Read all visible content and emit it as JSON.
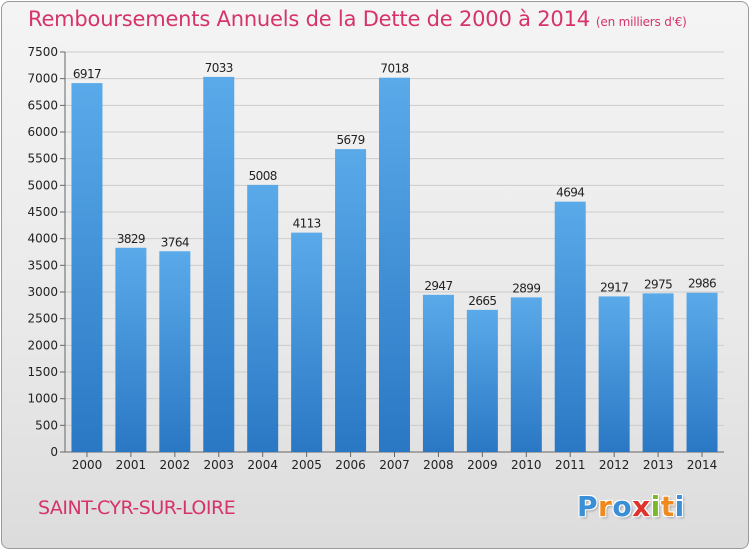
{
  "chart_data": {
    "type": "bar",
    "title": "Remboursements Annuels de la Dette de 2000 à 2014",
    "unit_note": "(en milliers d'€)",
    "categories": [
      "2000",
      "2001",
      "2002",
      "2003",
      "2004",
      "2005",
      "2006",
      "2007",
      "2008",
      "2009",
      "2010",
      "2011",
      "2012",
      "2013",
      "2014"
    ],
    "values": [
      6917,
      3829,
      3764,
      7033,
      5008,
      4113,
      5679,
      7018,
      2947,
      2665,
      2899,
      4694,
      2917,
      2975,
      2986
    ],
    "ylim": [
      0,
      7500
    ],
    "yticks": [
      0,
      500,
      1000,
      1500,
      2000,
      2500,
      3000,
      3500,
      4000,
      4500,
      5000,
      5500,
      6000,
      6500,
      7000,
      7500
    ],
    "grid": true,
    "xlabel": "",
    "ylabel": ""
  },
  "location": "SAINT-CYR-SUR-LOIRE",
  "logo": {
    "letters": [
      "P",
      "r",
      "o",
      "x",
      "i",
      "t",
      "i"
    ],
    "colors": [
      "#3b8fd6",
      "#f08a1c",
      "#3b8fd6",
      "#e0332c",
      "#7ab929",
      "#f08a1c",
      "#3b8fd6"
    ]
  },
  "colors": {
    "accent": "#d6336c",
    "bar_light": "#5aaaea",
    "bar_dark": "#2a78c4",
    "grid": "#cccccc"
  }
}
